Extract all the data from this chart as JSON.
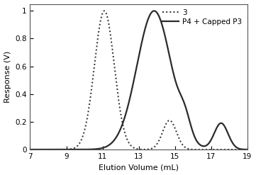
{
  "xlabel": "Elution Volume (mL)",
  "ylabel": "Response (V)",
  "xlim": [
    7,
    19
  ],
  "ylim": [
    0,
    1.05
  ],
  "xticks": [
    7,
    9,
    11,
    13,
    15,
    17,
    19
  ],
  "yticks": [
    0,
    0.2,
    0.4,
    0.6,
    0.8,
    1
  ],
  "ytick_labels": [
    "0",
    "0.2",
    "0.4",
    "0.6",
    "0.8",
    "1"
  ],
  "legend_entries": [
    "3",
    "P4 + Capped P3"
  ],
  "line_color": "#2b2b2b",
  "background_color": "#ffffff",
  "dotted_curve": {
    "gaussians": [
      {
        "mu": 11.1,
        "sigma": 0.55,
        "amp": 1.0
      },
      {
        "mu": 14.7,
        "sigma": 0.38,
        "amp": 0.21
      }
    ]
  },
  "solid_curve": {
    "gaussians": [
      {
        "mu": 13.85,
        "sigma": 0.95,
        "amp": 1.0
      },
      {
        "mu": 15.55,
        "sigma": 0.32,
        "amp": 0.12
      },
      {
        "mu": 17.55,
        "sigma": 0.38,
        "amp": 0.19
      }
    ]
  }
}
